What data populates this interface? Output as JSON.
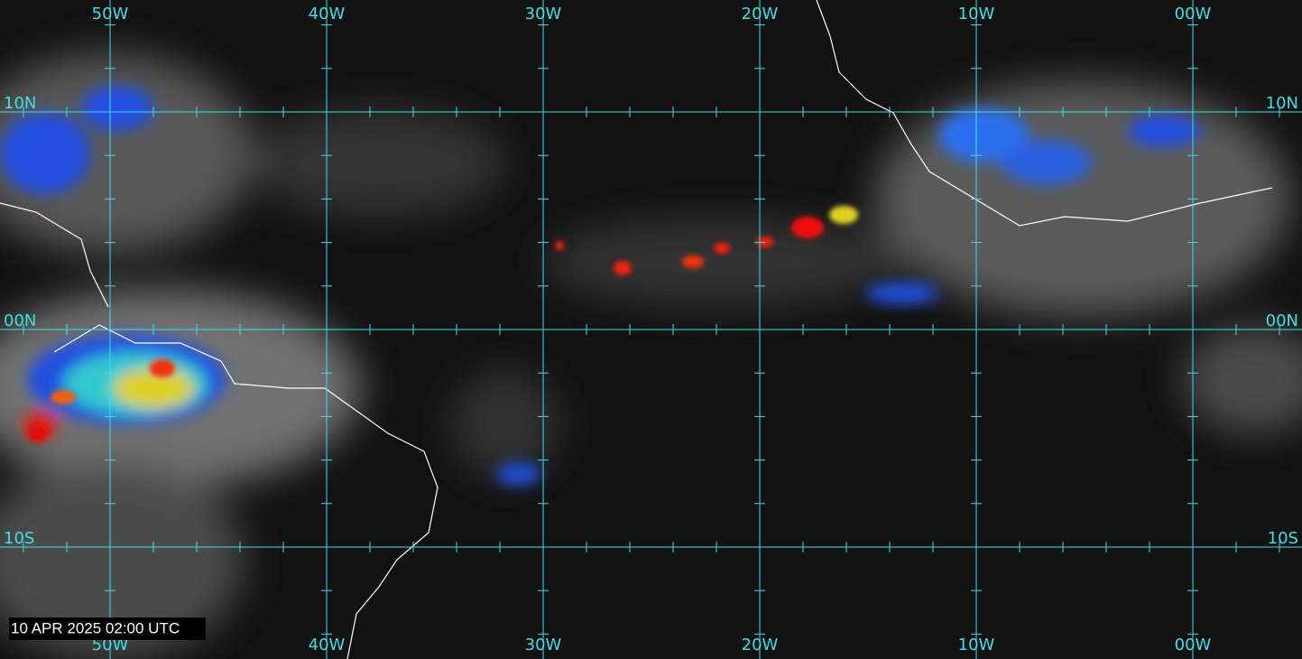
{
  "map": {
    "longitude_labels": [
      "50W",
      "40W",
      "30W",
      "20W",
      "10W",
      "00W"
    ],
    "latitude_labels": [
      "10N",
      "00N",
      "10S"
    ],
    "timestamp": "10 APR 2025 02:00 UTC"
  }
}
